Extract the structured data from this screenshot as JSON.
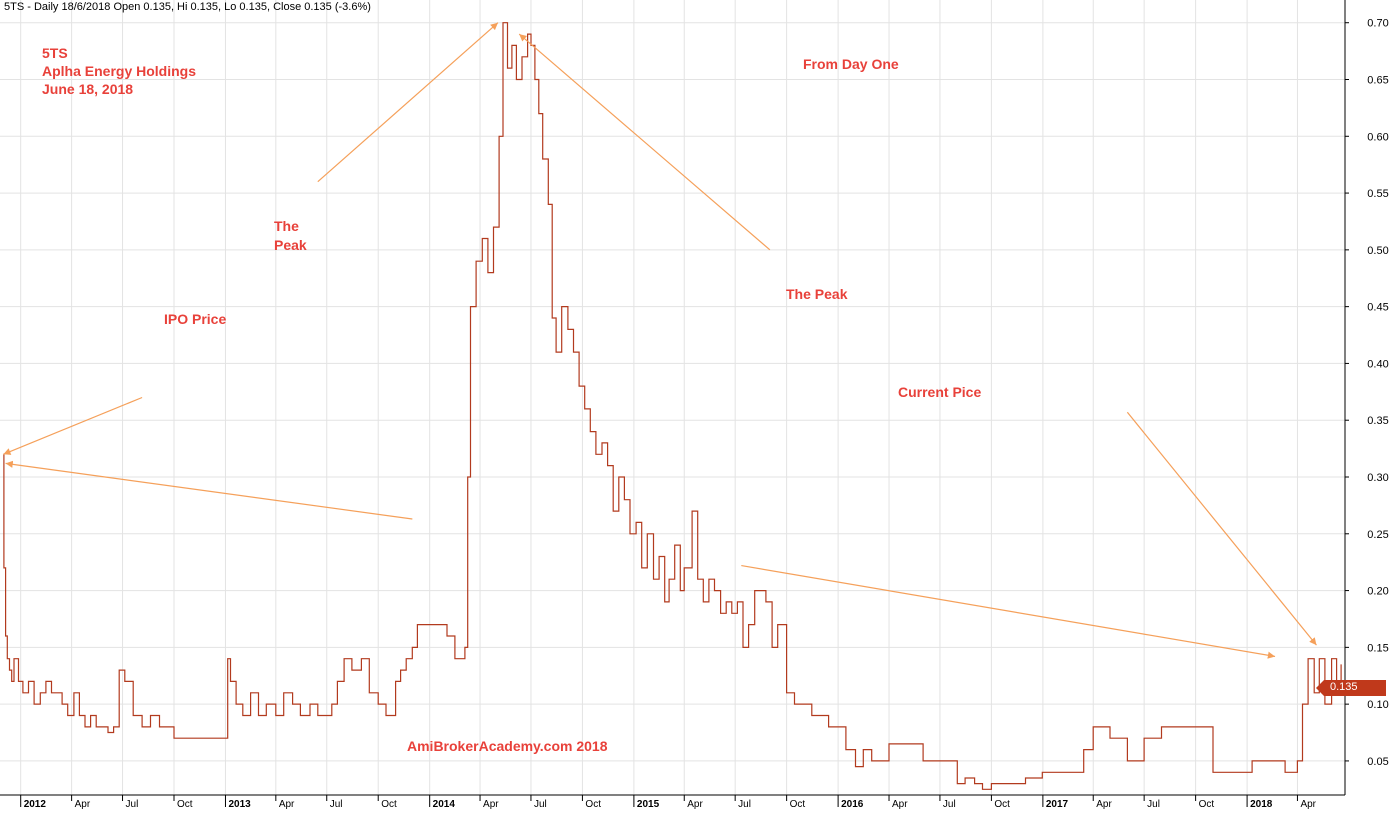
{
  "header": {
    "title": "5TS - Daily 18/6/2018 Open 0.135, Hi 0.135, Lo 0.135, Close 0.135 (-3.6%)"
  },
  "annotations": {
    "ticker": "5TS",
    "company": "Aplha Energy Holdings",
    "date": "June 18, 2018",
    "from_day_one": "From Day One",
    "peak_left_line1": "The",
    "peak_left_line2": "Peak",
    "peak_right": "The Peak",
    "ipo": "IPO Price",
    "current": "Current Pice",
    "watermark": "AmiBrokerAcademy.com  2018"
  },
  "price_badge": "0.135",
  "colors": {
    "price_line": "#b23a1e",
    "arrow": "#f5a05a",
    "annotation_text": "#e8413a",
    "grid": "#e3e3e3",
    "badge": "#c0391b"
  },
  "chart_data": {
    "type": "line",
    "title": "5TS - Daily 18/6/2018 Open 0.135, Hi 0.135, Lo 0.135, Close 0.135 (-3.6%)",
    "xlabel": "",
    "ylabel": "",
    "xlim": [
      "2011-11-25",
      "2018-06-25"
    ],
    "ylim": [
      0.02,
      0.72
    ],
    "y_ticks": [
      "0.05",
      "0.10",
      "0.15",
      "0.20",
      "0.25",
      "0.30",
      "0.35",
      "0.40",
      "0.45",
      "0.50",
      "0.55",
      "0.60",
      "0.65",
      "0.70"
    ],
    "x_ticks": [
      {
        "label": "2012",
        "date": "2012-01-01",
        "year": true
      },
      {
        "label": "Apr",
        "date": "2012-04-01"
      },
      {
        "label": "Jul",
        "date": "2012-07-01"
      },
      {
        "label": "Oct",
        "date": "2012-10-01"
      },
      {
        "label": "2013",
        "date": "2013-01-01",
        "year": true
      },
      {
        "label": "Apr",
        "date": "2013-04-01"
      },
      {
        "label": "Jul",
        "date": "2013-07-01"
      },
      {
        "label": "Oct",
        "date": "2013-10-01"
      },
      {
        "label": "2014",
        "date": "2014-01-01",
        "year": true
      },
      {
        "label": "Apr",
        "date": "2014-04-01"
      },
      {
        "label": "Jul",
        "date": "2014-07-01"
      },
      {
        "label": "Oct",
        "date": "2014-10-01"
      },
      {
        "label": "2015",
        "date": "2015-01-01",
        "year": true
      },
      {
        "label": "Apr",
        "date": "2015-04-01"
      },
      {
        "label": "Jul",
        "date": "2015-07-01"
      },
      {
        "label": "Oct",
        "date": "2015-10-01"
      },
      {
        "label": "2016",
        "date": "2016-01-01",
        "year": true
      },
      {
        "label": "Apr",
        "date": "2016-04-01"
      },
      {
        "label": "Jul",
        "date": "2016-07-01"
      },
      {
        "label": "Oct",
        "date": "2016-10-01"
      },
      {
        "label": "2017",
        "date": "2017-01-01",
        "year": true
      },
      {
        "label": "Apr",
        "date": "2017-04-01"
      },
      {
        "label": "Jul",
        "date": "2017-07-01"
      },
      {
        "label": "Oct",
        "date": "2017-10-01"
      },
      {
        "label": "2018",
        "date": "2018-01-01",
        "year": true
      },
      {
        "label": "Apr",
        "date": "2018-04-01"
      }
    ],
    "grid": true,
    "series": [
      {
        "x": [
          "2011-12-01",
          "2011-12-02",
          "2011-12-05",
          "2011-12-08",
          "2011-12-12",
          "2011-12-16",
          "2011-12-20",
          "2011-12-28",
          "2012-01-05",
          "2012-01-15",
          "2012-01-25",
          "2012-02-05",
          "2012-02-15",
          "2012-02-25",
          "2012-03-05",
          "2012-03-15",
          "2012-03-25",
          "2012-04-05",
          "2012-04-15",
          "2012-04-25",
          "2012-05-05",
          "2012-05-15",
          "2012-05-25",
          "2012-06-05",
          "2012-06-15",
          "2012-06-25",
          "2012-07-05",
          "2012-07-20",
          "2012-08-05",
          "2012-08-20",
          "2012-09-05",
          "2012-10-01",
          "2012-11-01",
          "2012-12-01",
          "2012-12-31",
          "2013-01-05",
          "2013-01-10",
          "2013-01-20",
          "2013-02-01",
          "2013-02-15",
          "2013-03-01",
          "2013-03-15",
          "2013-04-01",
          "2013-04-15",
          "2013-05-01",
          "2013-05-15",
          "2013-06-01",
          "2013-06-15",
          "2013-07-01",
          "2013-07-10",
          "2013-07-20",
          "2013-08-01",
          "2013-08-15",
          "2013-09-01",
          "2013-09-15",
          "2013-10-01",
          "2013-10-15",
          "2013-11-01",
          "2013-11-10",
          "2013-11-20",
          "2013-12-01",
          "2013-12-10",
          "2014-01-01",
          "2014-01-15",
          "2014-02-01",
          "2014-02-15",
          "2014-03-01",
          "2014-03-05",
          "2014-03-10",
          "2014-03-15",
          "2014-03-25",
          "2014-04-05",
          "2014-04-15",
          "2014-04-25",
          "2014-05-05",
          "2014-05-12",
          "2014-05-20",
          "2014-05-28",
          "2014-06-05",
          "2014-06-15",
          "2014-06-25",
          "2014-07-01",
          "2014-07-08",
          "2014-07-15",
          "2014-07-22",
          "2014-08-01",
          "2014-08-08",
          "2014-08-15",
          "2014-08-25",
          "2014-09-05",
          "2014-09-15",
          "2014-09-25",
          "2014-10-05",
          "2014-10-15",
          "2014-10-25",
          "2014-11-05",
          "2014-11-15",
          "2014-11-25",
          "2014-12-05",
          "2014-12-15",
          "2014-12-25",
          "2015-01-05",
          "2015-01-15",
          "2015-01-25",
          "2015-02-05",
          "2015-02-15",
          "2015-02-25",
          "2015-03-05",
          "2015-03-15",
          "2015-03-25",
          "2015-04-01",
          "2015-04-15",
          "2015-04-25",
          "2015-05-05",
          "2015-05-15",
          "2015-05-25",
          "2015-06-05",
          "2015-06-15",
          "2015-06-25",
          "2015-07-05",
          "2015-07-15",
          "2015-07-25",
          "2015-08-05",
          "2015-08-15",
          "2015-08-25",
          "2015-09-05",
          "2015-09-15",
          "2015-09-25",
          "2015-10-01",
          "2015-10-15",
          "2015-11-01",
          "2015-11-15",
          "2015-12-01",
          "2015-12-15",
          "2016-01-01",
          "2016-01-15",
          "2016-02-01",
          "2016-02-15",
          "2016-03-01",
          "2016-04-01",
          "2016-05-01",
          "2016-06-01",
          "2016-07-01",
          "2016-07-15",
          "2016-08-01",
          "2016-08-15",
          "2016-09-01",
          "2016-09-15",
          "2016-10-01",
          "2016-11-01",
          "2016-12-01",
          "2016-12-31",
          "2017-01-15",
          "2017-02-01",
          "2017-02-15",
          "2017-03-01",
          "2017-03-15",
          "2017-04-01",
          "2017-05-01",
          "2017-06-01",
          "2017-07-01",
          "2017-08-01",
          "2017-09-01",
          "2017-09-15",
          "2017-09-20",
          "2017-10-01",
          "2017-11-01",
          "2017-12-01",
          "2017-12-31",
          "2018-01-10",
          "2018-01-20",
          "2018-02-01",
          "2018-02-15",
          "2018-03-01",
          "2018-03-10",
          "2018-03-20",
          "2018-04-01",
          "2018-04-10",
          "2018-04-20",
          "2018-05-01",
          "2018-05-10",
          "2018-05-20",
          "2018-06-01",
          "2018-06-10",
          "2018-06-18"
        ],
        "y": [
          0.32,
          0.22,
          0.16,
          0.14,
          0.13,
          0.12,
          0.14,
          0.12,
          0.11,
          0.12,
          0.1,
          0.11,
          0.12,
          0.11,
          0.11,
          0.1,
          0.09,
          0.11,
          0.09,
          0.08,
          0.09,
          0.08,
          0.08,
          0.075,
          0.08,
          0.13,
          0.12,
          0.09,
          0.08,
          0.09,
          0.08,
          0.07,
          0.07,
          0.07,
          0.07,
          0.14,
          0.12,
          0.1,
          0.09,
          0.11,
          0.09,
          0.1,
          0.09,
          0.11,
          0.1,
          0.09,
          0.1,
          0.09,
          0.09,
          0.1,
          0.12,
          0.14,
          0.13,
          0.14,
          0.11,
          0.1,
          0.09,
          0.12,
          0.13,
          0.14,
          0.15,
          0.17,
          0.17,
          0.17,
          0.16,
          0.14,
          0.14,
          0.15,
          0.3,
          0.45,
          0.49,
          0.51,
          0.48,
          0.52,
          0.6,
          0.7,
          0.66,
          0.68,
          0.65,
          0.67,
          0.69,
          0.68,
          0.65,
          0.62,
          0.58,
          0.54,
          0.44,
          0.41,
          0.45,
          0.43,
          0.41,
          0.38,
          0.36,
          0.34,
          0.32,
          0.33,
          0.31,
          0.27,
          0.3,
          0.28,
          0.25,
          0.26,
          0.22,
          0.25,
          0.21,
          0.23,
          0.19,
          0.21,
          0.24,
          0.2,
          0.22,
          0.27,
          0.21,
          0.19,
          0.21,
          0.2,
          0.18,
          0.19,
          0.18,
          0.19,
          0.15,
          0.17,
          0.2,
          0.2,
          0.19,
          0.15,
          0.17,
          0.17,
          0.11,
          0.1,
          0.1,
          0.09,
          0.09,
          0.08,
          0.08,
          0.06,
          0.045,
          0.06,
          0.05,
          0.065,
          0.065,
          0.05,
          0.05,
          0.05,
          0.03,
          0.035,
          0.03,
          0.025,
          0.03,
          0.03,
          0.035,
          0.04,
          0.04,
          0.04,
          0.04,
          0.04,
          0.06,
          0.08,
          0.07,
          0.05,
          0.07,
          0.08,
          0.08,
          0.08,
          0.08,
          0.08,
          0.04,
          0.04,
          0.04,
          0.05,
          0.05,
          0.05,
          0.05,
          0.05,
          0.04,
          0.04,
          0.05,
          0.1,
          0.14,
          0.11,
          0.14,
          0.1,
          0.14,
          0.11,
          0.135
        ]
      }
    ],
    "annotation_arrows": [
      {
        "from": [
          "2012-08-05",
          0.37
        ],
        "to": [
          "2011-12-01",
          0.32
        ]
      },
      {
        "from": [
          "2013-12-01",
          0.263
        ],
        "to": [
          "2011-12-05",
          0.312
        ]
      },
      {
        "from": [
          "2013-06-15",
          0.56
        ],
        "to": [
          "2014-05-03",
          0.7
        ]
      },
      {
        "from": [
          "2015-09-01",
          0.5
        ],
        "to": [
          "2014-06-10",
          0.69
        ]
      },
      {
        "from": [
          "2017-06-01",
          0.357
        ],
        "to": [
          "2018-05-05",
          0.152
        ]
      },
      {
        "from": [
          "2015-07-12",
          0.222
        ],
        "to": [
          "2018-02-20",
          0.142
        ]
      }
    ]
  }
}
